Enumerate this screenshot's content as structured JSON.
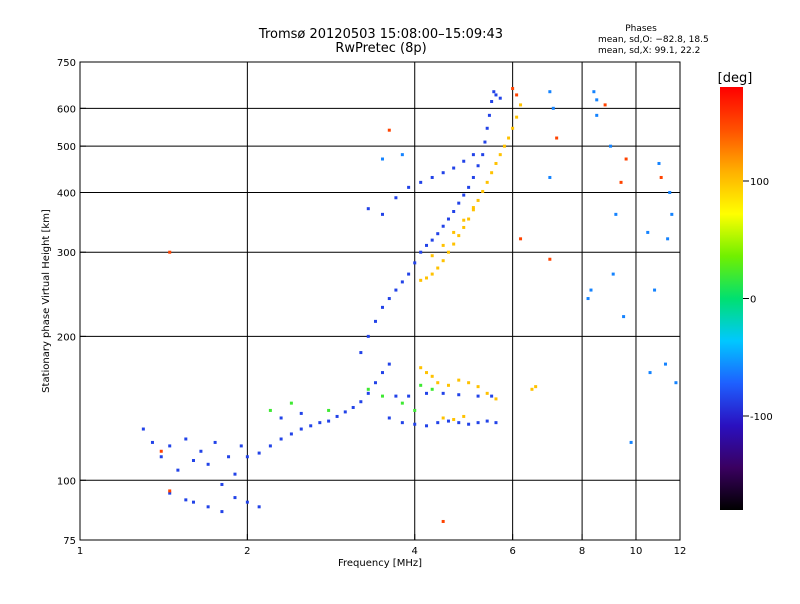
{
  "header": {
    "title_line1": "Tromsø 20120503 15:08:00–15:09:43",
    "title_line2": "RwPretec (8p)"
  },
  "stats": {
    "heading": "Phases",
    "line1": "mean, sd,O: −82.8, 18.5",
    "line2": "mean, sd,X:  99.1, 22.2"
  },
  "chart_data": {
    "type": "scatter",
    "xlabel": "Frequency [MHz]",
    "ylabel": "Stationary phase Virtual Height [km]",
    "x_scale": "log",
    "y_scale": "log",
    "xlim": [
      1,
      12
    ],
    "ylim": [
      75,
      750
    ],
    "x_ticks": [
      1,
      2,
      4,
      6,
      8,
      10,
      12
    ],
    "y_ticks": [
      75,
      100,
      200,
      300,
      400,
      500,
      600,
      750
    ],
    "x_gridlines": [
      2,
      4,
      6,
      8,
      10
    ],
    "y_gridlines": [
      100,
      200,
      300,
      400,
      500,
      600
    ],
    "grid": true,
    "colorbar": {
      "label": "[deg]",
      "range": [
        -180,
        180
      ],
      "ticks": [
        100,
        0,
        -100
      ],
      "colors": [
        "#000000",
        "#3a0060",
        "#2a10c0",
        "#1e60ff",
        "#00c8ff",
        "#00e070",
        "#70f000",
        "#ffff00",
        "#ffb000",
        "#ff5000",
        "#ff0000"
      ]
    },
    "series": [
      {
        "phase_deg": -85,
        "points": [
          [
            1.3,
            128
          ],
          [
            1.35,
            120
          ],
          [
            1.4,
            112
          ],
          [
            1.45,
            118
          ],
          [
            1.5,
            105
          ],
          [
            1.55,
            122
          ],
          [
            1.6,
            110
          ],
          [
            1.65,
            115
          ],
          [
            1.7,
            108
          ],
          [
            1.75,
            120
          ],
          [
            1.8,
            98
          ],
          [
            1.85,
            112
          ],
          [
            1.9,
            103
          ],
          [
            1.95,
            118
          ],
          [
            2.0,
            112
          ],
          [
            2.1,
            114
          ],
          [
            2.2,
            118
          ],
          [
            2.3,
            122
          ],
          [
            2.4,
            125
          ],
          [
            2.5,
            128
          ],
          [
            2.6,
            130
          ],
          [
            2.7,
            132
          ],
          [
            2.8,
            133
          ],
          [
            2.9,
            136
          ],
          [
            3.0,
            139
          ],
          [
            3.1,
            142
          ],
          [
            3.2,
            146
          ],
          [
            3.3,
            152
          ],
          [
            3.4,
            160
          ],
          [
            3.5,
            168
          ],
          [
            3.6,
            175
          ],
          [
            3.2,
            185
          ],
          [
            3.3,
            200
          ],
          [
            3.4,
            215
          ],
          [
            3.5,
            230
          ],
          [
            3.6,
            240
          ],
          [
            3.7,
            250
          ],
          [
            3.8,
            260
          ],
          [
            3.9,
            270
          ],
          [
            4.0,
            285
          ],
          [
            4.1,
            300
          ],
          [
            4.2,
            310
          ],
          [
            4.3,
            318
          ],
          [
            4.4,
            328
          ],
          [
            4.5,
            340
          ],
          [
            4.6,
            352
          ],
          [
            4.7,
            365
          ],
          [
            4.8,
            380
          ],
          [
            4.9,
            395
          ],
          [
            5.0,
            410
          ],
          [
            5.1,
            430
          ],
          [
            5.2,
            455
          ],
          [
            5.3,
            480
          ],
          [
            5.35,
            510
          ],
          [
            5.4,
            545
          ],
          [
            5.45,
            580
          ],
          [
            5.5,
            620
          ],
          [
            5.55,
            650
          ],
          [
            5.6,
            640
          ],
          [
            5.7,
            630
          ],
          [
            3.3,
            370
          ],
          [
            3.5,
            360
          ],
          [
            3.7,
            390
          ],
          [
            3.9,
            410
          ],
          [
            4.1,
            420
          ],
          [
            4.3,
            430
          ],
          [
            4.5,
            440
          ],
          [
            4.7,
            450
          ],
          [
            4.9,
            465
          ],
          [
            5.1,
            480
          ],
          [
            3.6,
            135
          ],
          [
            3.8,
            132
          ],
          [
            4.0,
            131
          ],
          [
            4.2,
            130
          ],
          [
            4.4,
            132
          ],
          [
            4.6,
            133
          ],
          [
            4.8,
            132
          ],
          [
            5.0,
            131
          ],
          [
            5.2,
            132
          ],
          [
            5.4,
            133
          ],
          [
            5.6,
            132
          ],
          [
            3.7,
            150
          ],
          [
            3.9,
            150
          ],
          [
            4.2,
            152
          ],
          [
            4.5,
            152
          ],
          [
            4.8,
            151
          ],
          [
            5.2,
            150
          ],
          [
            5.5,
            150
          ],
          [
            1.6,
            90
          ],
          [
            1.7,
            88
          ],
          [
            1.8,
            86
          ],
          [
            1.9,
            92
          ],
          [
            2.0,
            90
          ],
          [
            2.1,
            88
          ],
          [
            1.45,
            94
          ],
          [
            1.55,
            91
          ],
          [
            2.3,
            135
          ],
          [
            2.5,
            138
          ]
        ]
      },
      {
        "phase_deg": 100,
        "points": [
          [
            4.1,
            262
          ],
          [
            4.2,
            265
          ],
          [
            4.3,
            270
          ],
          [
            4.4,
            278
          ],
          [
            4.5,
            288
          ],
          [
            4.6,
            300
          ],
          [
            4.7,
            312
          ],
          [
            4.8,
            325
          ],
          [
            4.9,
            338
          ],
          [
            5.0,
            352
          ],
          [
            5.1,
            368
          ],
          [
            5.2,
            385
          ],
          [
            5.3,
            402
          ],
          [
            5.4,
            420
          ],
          [
            5.5,
            440
          ],
          [
            5.6,
            460
          ],
          [
            5.7,
            480
          ],
          [
            5.8,
            500
          ],
          [
            5.9,
            520
          ],
          [
            6.0,
            545
          ],
          [
            6.1,
            575
          ],
          [
            6.2,
            610
          ],
          [
            4.3,
            295
          ],
          [
            4.5,
            310
          ],
          [
            4.7,
            330
          ],
          [
            4.9,
            350
          ],
          [
            5.1,
            372
          ],
          [
            4.1,
            172
          ],
          [
            4.2,
            168
          ],
          [
            4.3,
            165
          ],
          [
            4.4,
            160
          ],
          [
            4.6,
            158
          ],
          [
            4.8,
            162
          ],
          [
            5.0,
            160
          ],
          [
            5.2,
            157
          ],
          [
            5.4,
            152
          ],
          [
            5.6,
            148
          ],
          [
            4.5,
            135
          ],
          [
            4.7,
            134
          ],
          [
            4.9,
            136
          ],
          [
            6.5,
            155
          ],
          [
            6.6,
            157
          ]
        ]
      },
      {
        "phase_deg": 20,
        "points": [
          [
            3.3,
            155
          ],
          [
            3.5,
            150
          ],
          [
            3.8,
            145
          ],
          [
            4.0,
            140
          ],
          [
            2.2,
            140
          ],
          [
            2.4,
            145
          ],
          [
            4.1,
            158
          ],
          [
            4.3,
            155
          ],
          [
            2.8,
            140
          ]
        ]
      },
      {
        "phase_deg": -60,
        "points": [
          [
            7.0,
            650
          ],
          [
            7.1,
            600
          ],
          [
            7.0,
            430
          ],
          [
            8.5,
            580
          ],
          [
            9.0,
            500
          ],
          [
            9.2,
            360
          ],
          [
            9.5,
            220
          ],
          [
            10.5,
            330
          ],
          [
            10.8,
            250
          ],
          [
            11.0,
            460
          ],
          [
            11.5,
            400
          ],
          [
            11.6,
            360
          ],
          [
            11.4,
            320
          ],
          [
            8.4,
            650
          ],
          [
            8.5,
            625
          ],
          [
            9.1,
            270
          ],
          [
            8.3,
            250
          ],
          [
            8.2,
            240
          ],
          [
            11.3,
            175
          ],
          [
            11.8,
            160
          ],
          [
            10.6,
            168
          ],
          [
            9.8,
            120
          ],
          [
            3.5,
            470
          ],
          [
            3.8,
            480
          ]
        ]
      },
      {
        "phase_deg": 150,
        "points": [
          [
            6.0,
            660
          ],
          [
            6.1,
            640
          ],
          [
            7.0,
            290
          ],
          [
            7.2,
            520
          ],
          [
            9.4,
            420
          ],
          [
            9.6,
            470
          ],
          [
            11.1,
            430
          ],
          [
            1.4,
            115
          ],
          [
            1.45,
            95
          ],
          [
            4.5,
            82
          ],
          [
            6.2,
            320
          ],
          [
            1.45,
            300
          ],
          [
            3.6,
            540
          ],
          [
            8.8,
            610
          ]
        ]
      }
    ]
  }
}
